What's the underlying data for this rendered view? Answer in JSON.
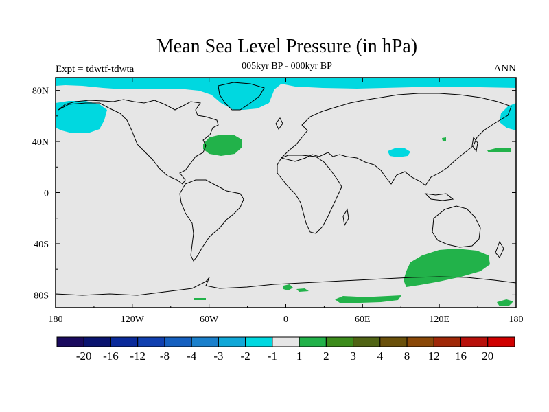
{
  "title": "Mean Sea Level Pressure (in hPa)",
  "subtitle": "005kyr BP - 000kyr BP",
  "experiment_label": "Expt = tdwtf-tdwta",
  "season_label": "ANN",
  "colors": {
    "background_field": "#e6e6e6",
    "negative_fill": "#00d8e0",
    "positive_fill": "#22b24a",
    "coastline": "#000000"
  },
  "map": {
    "lon_range": [
      -180,
      180
    ],
    "lat_range": [
      -90,
      90
    ],
    "x_ticks": [
      {
        "value": -180,
        "label": "180"
      },
      {
        "value": -120,
        "label": "120W"
      },
      {
        "value": -60,
        "label": "60W"
      },
      {
        "value": 0,
        "label": "0"
      },
      {
        "value": 60,
        "label": "60E"
      },
      {
        "value": 120,
        "label": "120E"
      },
      {
        "value": 180,
        "label": "180"
      }
    ],
    "y_ticks": [
      {
        "value": 80,
        "label": "80N"
      },
      {
        "value": 40,
        "label": "40N"
      },
      {
        "value": 0,
        "label": "0"
      },
      {
        "value": -40,
        "label": "40S"
      },
      {
        "value": -80,
        "label": "80S"
      }
    ]
  },
  "colorbar": {
    "colors": [
      "#1a0a5e",
      "#0a1470",
      "#0a2a9a",
      "#1040b0",
      "#1560c0",
      "#1a80cc",
      "#10a8d8",
      "#00d8e0",
      "#e6e6e6",
      "#22b24a",
      "#3c8c1c",
      "#506414",
      "#6a500a",
      "#8a4808",
      "#a02808",
      "#b8100a",
      "#d00000"
    ],
    "labels": [
      "-20",
      "-16",
      "-12",
      "-8",
      "-4",
      "-3",
      "-2",
      "-1",
      "1",
      "2",
      "3",
      "4",
      "8",
      "12",
      "16",
      "20"
    ]
  },
  "chart_data": {
    "type": "heatmap",
    "title": "Mean Sea Level Pressure (in hPa)",
    "subtitle": "005kyr BP - 000kyr BP",
    "xlabel": "",
    "ylabel": "",
    "xlim": [
      -180,
      180
    ],
    "ylim": [
      -90,
      90
    ],
    "contour_levels": [
      -20,
      -16,
      -12,
      -8,
      -4,
      -3,
      -2,
      -1,
      1,
      2,
      3,
      4,
      8,
      12,
      16,
      20
    ],
    "regions": [
      {
        "sign": "negative",
        "band": "-2 to -1",
        "location": "Arctic Ocean band",
        "lon": [
          -180,
          180
        ],
        "lat": [
          75,
          90
        ]
      },
      {
        "sign": "negative",
        "band": "-2 to -1",
        "location": "North Pacific / Alaska",
        "lon": [
          -180,
          -145
        ],
        "lat": [
          48,
          72
        ]
      },
      {
        "sign": "negative",
        "band": "-2 to -1",
        "location": "Greenland",
        "lon": [
          -55,
          -20
        ],
        "lat": [
          62,
          82
        ]
      },
      {
        "sign": "negative",
        "band": "-2 to -1",
        "location": "NW Pacific",
        "lon": [
          165,
          180
        ],
        "lat": [
          50,
          62
        ]
      },
      {
        "sign": "negative",
        "band": "-2 to -1",
        "location": "Tibetan Plateau",
        "lon": [
          78,
          93
        ],
        "lat": [
          29,
          35
        ]
      },
      {
        "sign": "positive",
        "band": "1 to 2",
        "location": "North Atlantic",
        "lon": [
          -62,
          -34
        ],
        "lat": [
          30,
          45
        ]
      },
      {
        "sign": "positive",
        "band": "1 to 2",
        "location": "Southern Ocean south of Australia",
        "lon": [
          93,
          163
        ],
        "lat": [
          -68,
          -43
        ]
      },
      {
        "sign": "positive",
        "band": "1 to 2",
        "location": "Antarctic coast",
        "lon": [
          37,
          90
        ],
        "lat": [
          -86,
          -80
        ]
      },
      {
        "sign": "positive",
        "band": "1 to 2",
        "location": "NE Pacific east of Japan",
        "lon": [
          155,
          170
        ],
        "lat": [
          32,
          35
        ]
      }
    ]
  }
}
